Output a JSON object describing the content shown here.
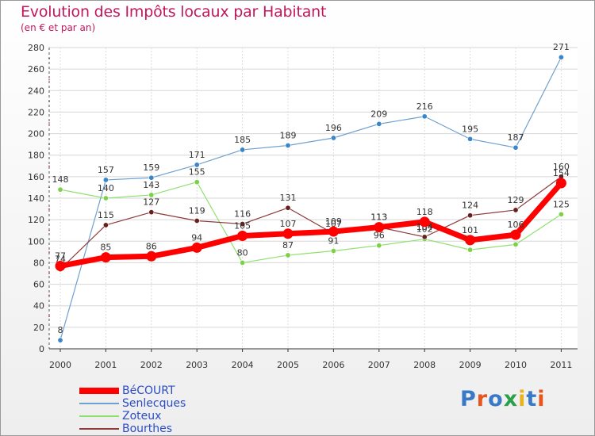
{
  "title": "Evolution des Impôts locaux par Habitant",
  "subtitle": "(en € et par an)",
  "logo": "Proxiti",
  "logo_colors": [
    "#3a78c8",
    "#e8541e",
    "#3a78c8",
    "#2aa04a",
    "#e8b41e",
    "#3a78c8",
    "#e8541e"
  ],
  "chart_data": {
    "type": "line",
    "title": "Evolution des Impôts locaux par Habitant",
    "subtitle": "(en € et par an)",
    "xlabel": "",
    "ylabel": "",
    "ylim": [
      0,
      280
    ],
    "yticks": [
      0,
      20,
      40,
      60,
      80,
      100,
      120,
      140,
      160,
      180,
      200,
      220,
      240,
      260,
      280
    ],
    "x": [
      "2000",
      "2001",
      "2002",
      "2003",
      "2004",
      "2005",
      "2006",
      "2007",
      "2008",
      "2009",
      "2010",
      "2011"
    ],
    "grid": true,
    "legend_position": "bottom-left",
    "series": [
      {
        "name": "Senlecques",
        "color": "#6fa0d0",
        "marker_color": "#3a86c8",
        "line_width": 1.2,
        "values": [
          8,
          157,
          159,
          171,
          185,
          189,
          196,
          209,
          216,
          195,
          187,
          271
        ]
      },
      {
        "name": "Zoteux",
        "color": "#90e070",
        "marker_color": "#7ed04a",
        "line_width": 1.2,
        "values": [
          148,
          140,
          143,
          155,
          80,
          87,
          91,
          96,
          102,
          92,
          97,
          125
        ]
      },
      {
        "name": "Bourthes",
        "color": "#8a3a3a",
        "marker_color": "#6a1f1f",
        "line_width": 1.2,
        "values": [
          74,
          115,
          127,
          119,
          116,
          131,
          107,
          113,
          104,
          124,
          129,
          160
        ]
      },
      {
        "name": "BéCOURT",
        "color": "#ff0000",
        "marker_color": "#ff0000",
        "line_width": 7,
        "values": [
          77,
          85,
          86,
          94,
          105,
          107,
          109,
          113,
          118,
          101,
          106,
          154
        ]
      }
    ],
    "legend_order": [
      "BéCOURT",
      "Senlecques",
      "Zoteux",
      "Bourthes"
    ]
  }
}
